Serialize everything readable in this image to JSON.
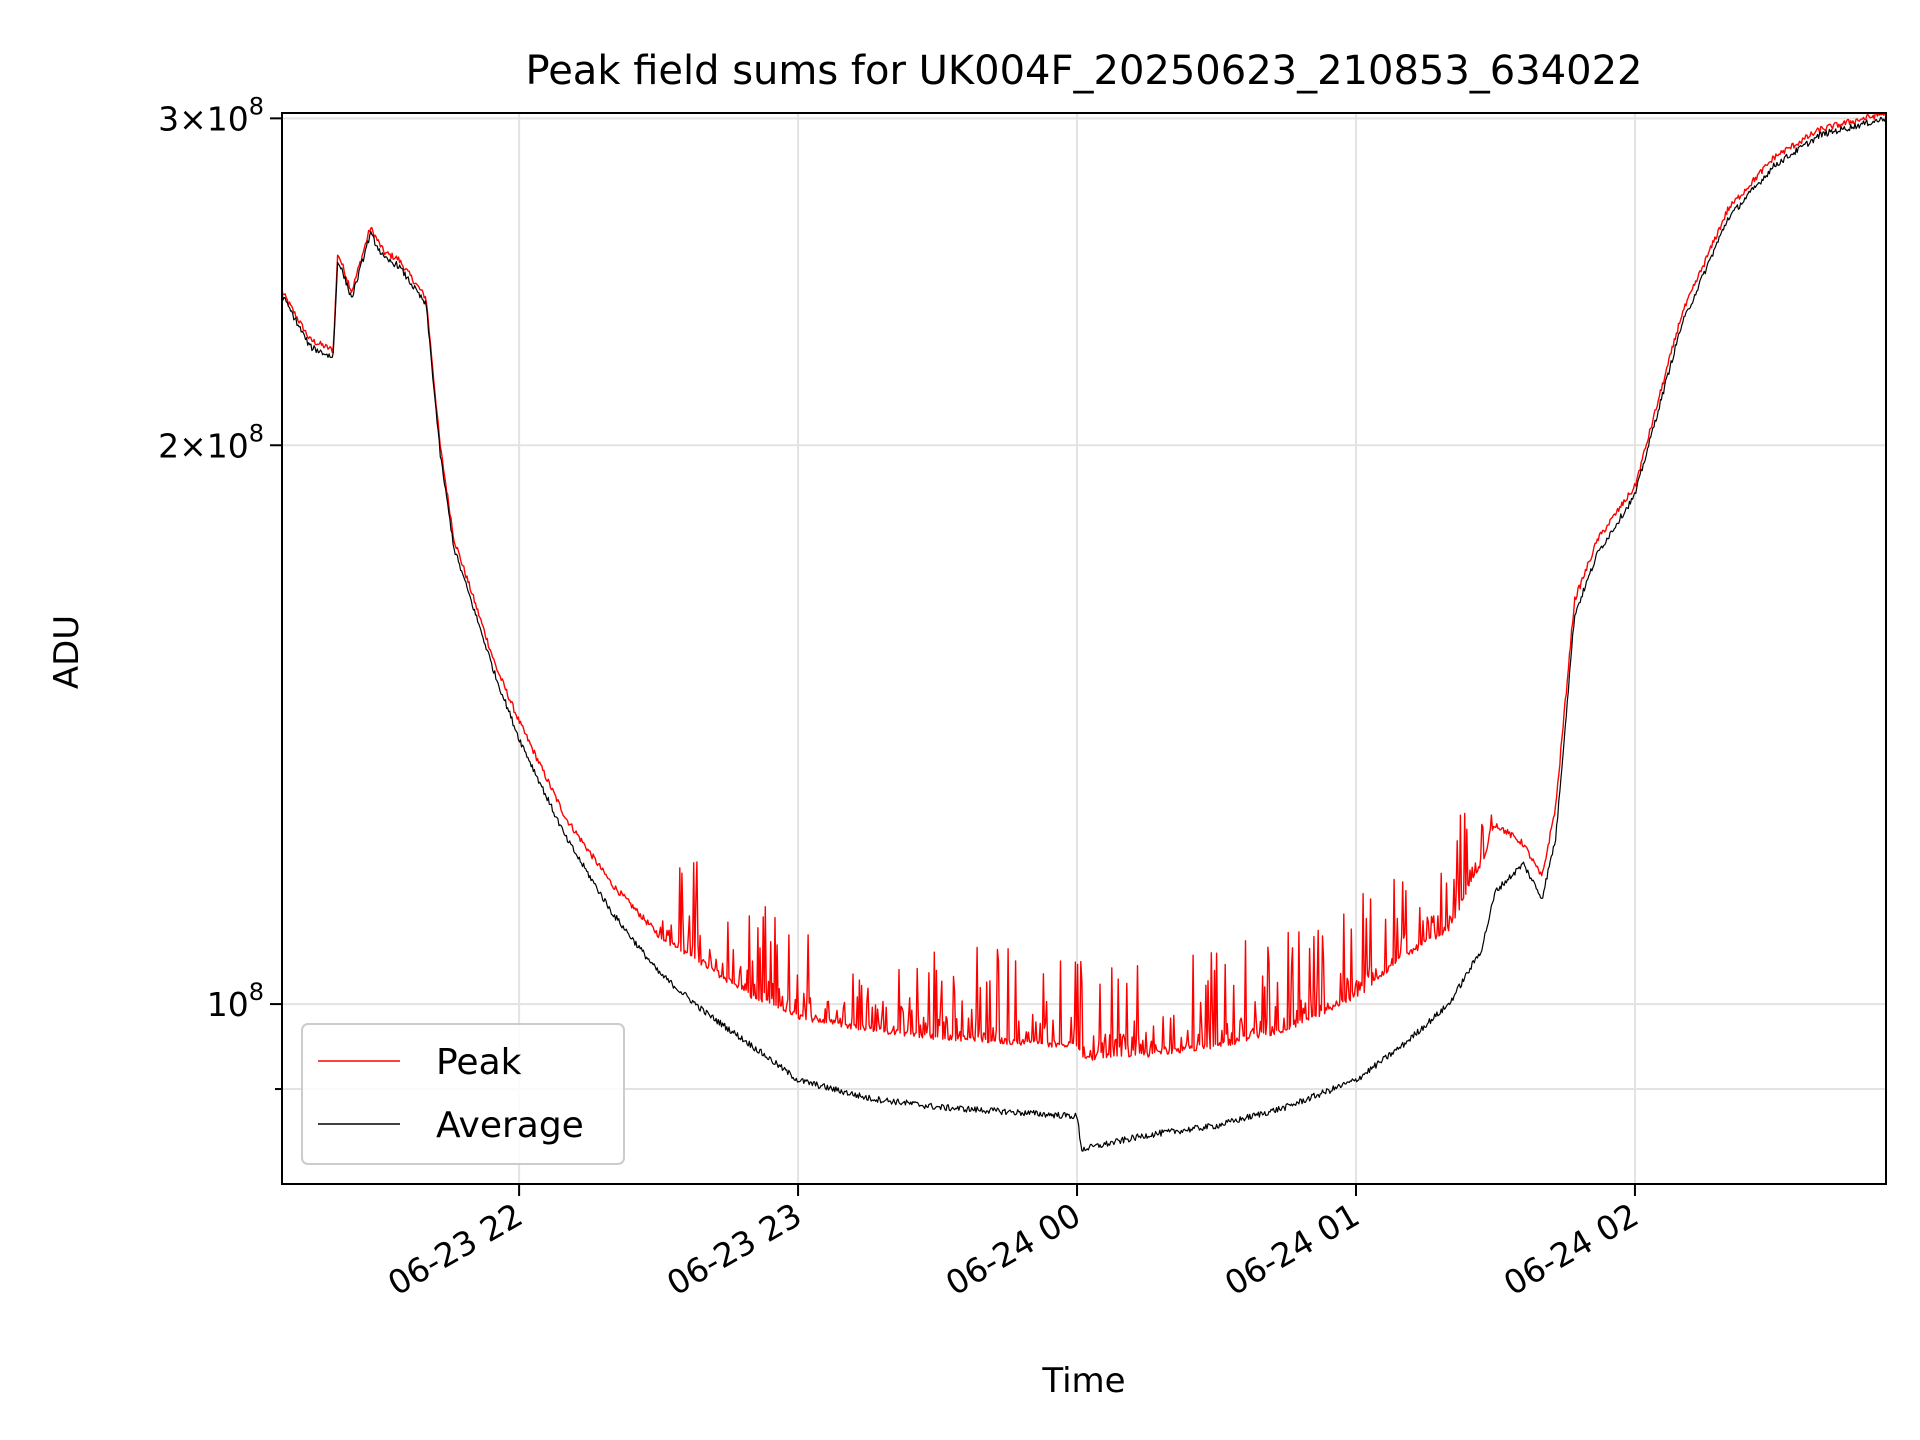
{
  "chart_data": {
    "type": "line",
    "title": "Peak field sums for UK004F_20250623_210853_634022",
    "xlabel": "Time",
    "ylabel": "ADU",
    "yscale": "log",
    "xlim": [
      "2025-06-23T21:09",
      "2025-06-24T02:54"
    ],
    "ylim": [
      80000000,
      302000000
    ],
    "x_ticks": [
      {
        "value": "2025-06-23T22:00",
        "label": "06-23 22"
      },
      {
        "value": "2025-06-23T23:00",
        "label": "06-23 23"
      },
      {
        "value": "2025-06-24T00:00",
        "label": "06-24 00"
      },
      {
        "value": "2025-06-24T01:00",
        "label": "06-24 01"
      },
      {
        "value": "2025-06-24T02:00",
        "label": "06-24 02"
      }
    ],
    "y_ticks": [
      {
        "value": 100000000,
        "base": "10",
        "exp": "8",
        "mantissa": ""
      },
      {
        "value": 200000000,
        "base": "10",
        "exp": "8",
        "mantissa": "2"
      },
      {
        "value": 300000000,
        "base": "10",
        "exp": "8",
        "mantissa": "3"
      }
    ],
    "y_minor_ticks": [
      90000000
    ],
    "grid": true,
    "legend": "lower-left",
    "series": [
      {
        "name": "Peak",
        "color": "#ff0000",
        "x": [
          "2025-06-23T21:09",
          "2025-06-23T21:15",
          "2025-06-23T21:20",
          "2025-06-23T21:21",
          "2025-06-23T21:24",
          "2025-06-23T21:28",
          "2025-06-23T21:31",
          "2025-06-23T21:34",
          "2025-06-23T21:40",
          "2025-06-23T21:43",
          "2025-06-23T21:46",
          "2025-06-23T21:50",
          "2025-06-23T21:55",
          "2025-06-23T22:00",
          "2025-06-23T22:10",
          "2025-06-23T22:20",
          "2025-06-23T22:30",
          "2025-06-23T22:40",
          "2025-06-23T22:50",
          "2025-06-23T23:00",
          "2025-06-23T23:15",
          "2025-06-23T23:30",
          "2025-06-23T23:45",
          "2025-06-24T00:00",
          "2025-06-24T00:01",
          "2025-06-24T00:15",
          "2025-06-24T00:30",
          "2025-06-24T00:45",
          "2025-06-24T01:00",
          "2025-06-24T01:10",
          "2025-06-24T01:20",
          "2025-06-24T01:27",
          "2025-06-24T01:30",
          "2025-06-24T01:36",
          "2025-06-24T01:40",
          "2025-06-24T01:43",
          "2025-06-24T01:47",
          "2025-06-24T01:52",
          "2025-06-24T02:00",
          "2025-06-24T02:10",
          "2025-06-24T02:20",
          "2025-06-24T02:30",
          "2025-06-24T02:40",
          "2025-06-24T02:54"
        ],
        "y": [
          242000000,
          228000000,
          225000000,
          254000000,
          242000000,
          262000000,
          254000000,
          252000000,
          240000000,
          200000000,
          178000000,
          166000000,
          152000000,
          142000000,
          126000000,
          116000000,
          109000000,
          105000000,
          101000000,
          98500000,
          97000000,
          96000000,
          95500000,
          95000000,
          93500000,
          94000000,
          95000000,
          97000000,
          101000000,
          106000000,
          110000000,
          119000000,
          125000000,
          122000000,
          117000000,
          128000000,
          165000000,
          178000000,
          190000000,
          235000000,
          268000000,
          286000000,
          296000000,
          302000000
        ],
        "noise": {
          "region": [
            "2025-06-23T22:30",
            "2025-06-24T01:30"
          ],
          "max_excursion": 0.13
        }
      },
      {
        "name": "Average",
        "color": "#000000",
        "x": [
          "2025-06-23T21:09",
          "2025-06-23T21:15",
          "2025-06-23T21:20",
          "2025-06-23T21:21",
          "2025-06-23T21:24",
          "2025-06-23T21:28",
          "2025-06-23T21:31",
          "2025-06-23T21:34",
          "2025-06-23T21:40",
          "2025-06-23T21:43",
          "2025-06-23T21:46",
          "2025-06-23T21:50",
          "2025-06-23T21:55",
          "2025-06-23T22:00",
          "2025-06-23T22:10",
          "2025-06-23T22:20",
          "2025-06-23T22:30",
          "2025-06-23T22:40",
          "2025-06-23T22:50",
          "2025-06-23T23:00",
          "2025-06-23T23:15",
          "2025-06-23T23:30",
          "2025-06-23T23:45",
          "2025-06-24T00:00",
          "2025-06-24T00:01",
          "2025-06-24T00:15",
          "2025-06-24T00:30",
          "2025-06-24T00:45",
          "2025-06-24T01:00",
          "2025-06-24T01:10",
          "2025-06-24T01:20",
          "2025-06-24T01:27",
          "2025-06-24T01:30",
          "2025-06-24T01:36",
          "2025-06-24T01:40",
          "2025-06-24T01:43",
          "2025-06-24T01:47",
          "2025-06-24T01:52",
          "2025-06-24T02:00",
          "2025-06-24T02:10",
          "2025-06-24T02:20",
          "2025-06-24T02:30",
          "2025-06-24T02:40",
          "2025-06-24T02:54"
        ],
        "y": [
          241000000,
          226000000,
          223000000,
          252000000,
          240000000,
          260000000,
          252000000,
          250000000,
          238000000,
          198000000,
          176000000,
          164000000,
          150000000,
          139000000,
          123000000,
          112000000,
          104000000,
          99000000,
          95000000,
          91000000,
          89000000,
          88000000,
          87500000,
          87000000,
          83500000,
          85000000,
          86000000,
          88000000,
          91000000,
          95000000,
          100000000,
          107000000,
          115000000,
          119000000,
          114000000,
          123000000,
          162000000,
          175000000,
          188000000,
          232000000,
          265000000,
          283000000,
          294000000,
          300000000
        ]
      }
    ]
  }
}
